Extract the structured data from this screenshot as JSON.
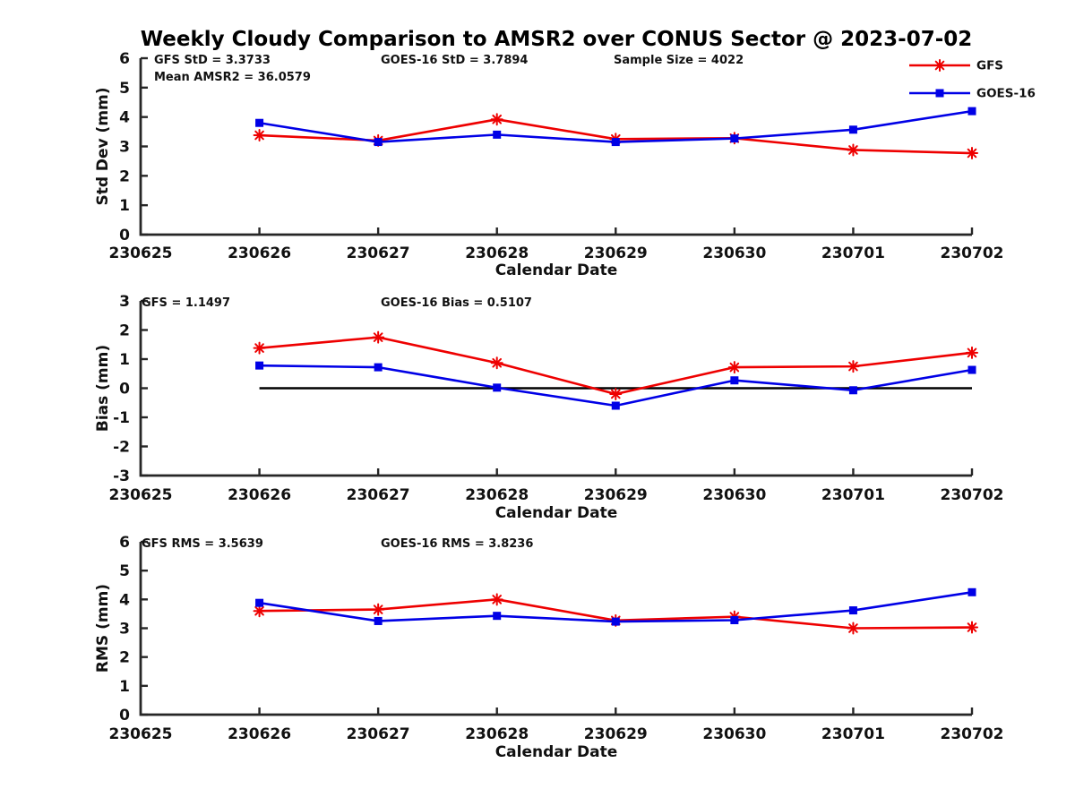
{
  "figure": {
    "title": "Weekly Cloudy Comparison to AMSR2 over CONUS Sector @ 2023-07-02",
    "xlabel": "Calendar Date"
  },
  "colors": {
    "series": {
      "GFS": "#ee0000",
      "GOES-16": "#0000e6"
    },
    "axis": "#262626",
    "text": "#111111",
    "zero_line": "#000000",
    "background": "#ffffff"
  },
  "legend": {
    "position": "top-right",
    "entries": [
      {
        "label": "GFS",
        "marker": "asterisk"
      },
      {
        "label": "GOES-16",
        "marker": "square"
      }
    ]
  },
  "chart_data": [
    {
      "id": "stddev",
      "type": "line",
      "ylabel": "Std Dev (mm)",
      "xlabel": "Calendar Date",
      "ylim": [
        0,
        6
      ],
      "yticks": [
        0,
        1,
        2,
        3,
        4,
        5,
        6
      ],
      "grid": false,
      "categories": [
        "230625",
        "230626",
        "230627",
        "230628",
        "230629",
        "230630",
        "230701",
        "230702"
      ],
      "x": [
        "230626",
        "230627",
        "230628",
        "230629",
        "230630",
        "230701",
        "230702"
      ],
      "annotations": [
        "GFS StD = 3.3733",
        "GOES-16 StD = 3.7894",
        "Sample Size = 4022",
        "Mean AMSR2 = 36.0579"
      ],
      "zero_line": false,
      "series": [
        {
          "name": "GFS",
          "marker": "asterisk",
          "values": [
            3.38,
            3.2,
            3.92,
            3.25,
            3.28,
            2.88,
            2.77
          ]
        },
        {
          "name": "GOES-16",
          "marker": "square",
          "values": [
            3.8,
            3.15,
            3.4,
            3.15,
            3.27,
            3.57,
            4.2
          ]
        }
      ]
    },
    {
      "id": "bias",
      "type": "line",
      "ylabel": "Bias (mm)",
      "xlabel": "Calendar Date",
      "ylim": [
        -3,
        3
      ],
      "yticks": [
        -3,
        -2,
        -1,
        0,
        1,
        2,
        3
      ],
      "grid": false,
      "categories": [
        "230625",
        "230626",
        "230627",
        "230628",
        "230629",
        "230630",
        "230701",
        "230702"
      ],
      "x": [
        "230626",
        "230627",
        "230628",
        "230629",
        "230630",
        "230701",
        "230702"
      ],
      "annotations": [
        "GFS = 1.1497",
        "GOES-16 Bias  = 0.5107"
      ],
      "zero_line": true,
      "series": [
        {
          "name": "GFS",
          "marker": "asterisk",
          "values": [
            1.38,
            1.75,
            0.87,
            -0.2,
            0.72,
            0.75,
            1.22
          ]
        },
        {
          "name": "GOES-16",
          "marker": "square",
          "values": [
            0.78,
            0.72,
            0.02,
            -0.6,
            0.27,
            -0.07,
            0.63
          ]
        }
      ]
    },
    {
      "id": "rms",
      "type": "line",
      "ylabel": "RMS (mm)",
      "xlabel": "Calendar Date",
      "ylim": [
        0,
        6
      ],
      "yticks": [
        0,
        1,
        2,
        3,
        4,
        5,
        6
      ],
      "grid": false,
      "categories": [
        "230625",
        "230626",
        "230627",
        "230628",
        "230629",
        "230630",
        "230701",
        "230702"
      ],
      "x": [
        "230626",
        "230627",
        "230628",
        "230629",
        "230630",
        "230701",
        "230702"
      ],
      "annotations": [
        "GFS RMS = 3.5639",
        "GOES-16 RMS = 3.8236"
      ],
      "zero_line": false,
      "series": [
        {
          "name": "GFS",
          "marker": "asterisk",
          "values": [
            3.6,
            3.65,
            4.0,
            3.27,
            3.4,
            3.0,
            3.03
          ]
        },
        {
          "name": "GOES-16",
          "marker": "square",
          "values": [
            3.88,
            3.25,
            3.43,
            3.23,
            3.28,
            3.62,
            4.25
          ]
        }
      ]
    }
  ]
}
